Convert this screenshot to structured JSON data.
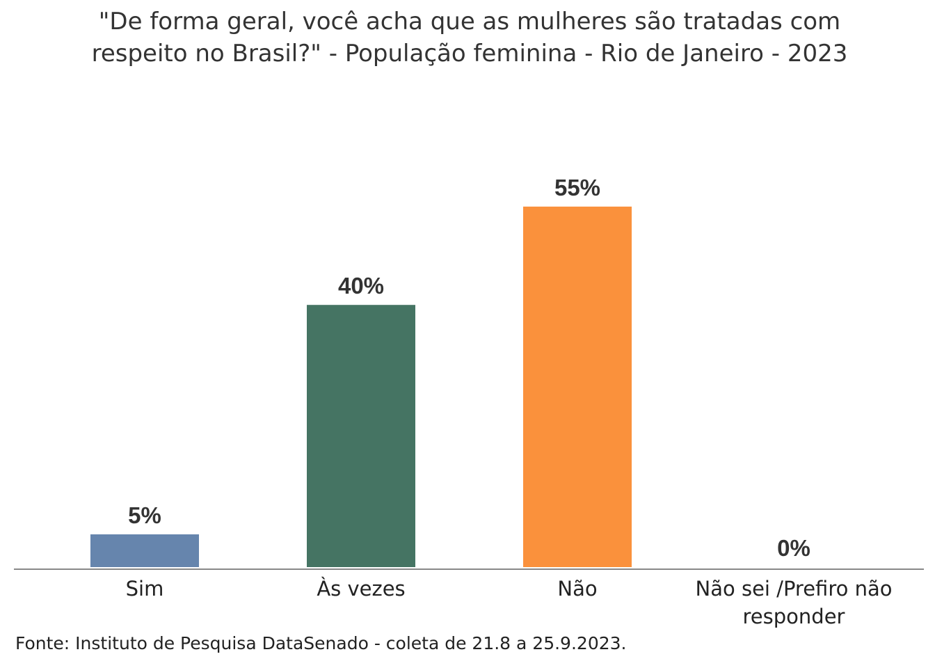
{
  "chart_data": {
    "type": "bar",
    "title": "\"De forma geral, você acha que as mulheres são tratadas com respeito no Brasil?\" - População feminina - Rio de Janeiro - 2023",
    "categories": [
      "Sim",
      "Às vezes",
      "Não",
      "Não sei /Prefiro não responder"
    ],
    "values": [
      5,
      40,
      55,
      0
    ],
    "value_labels": [
      "5%",
      "40%",
      "55%",
      "0%"
    ],
    "colors": [
      "#6685ad",
      "#457463",
      "#fa913c",
      "#b0b0b0"
    ],
    "source": "Fonte: Instituto de Pesquisa DataSenado - coleta de 21.8 a 25.9.2023."
  }
}
